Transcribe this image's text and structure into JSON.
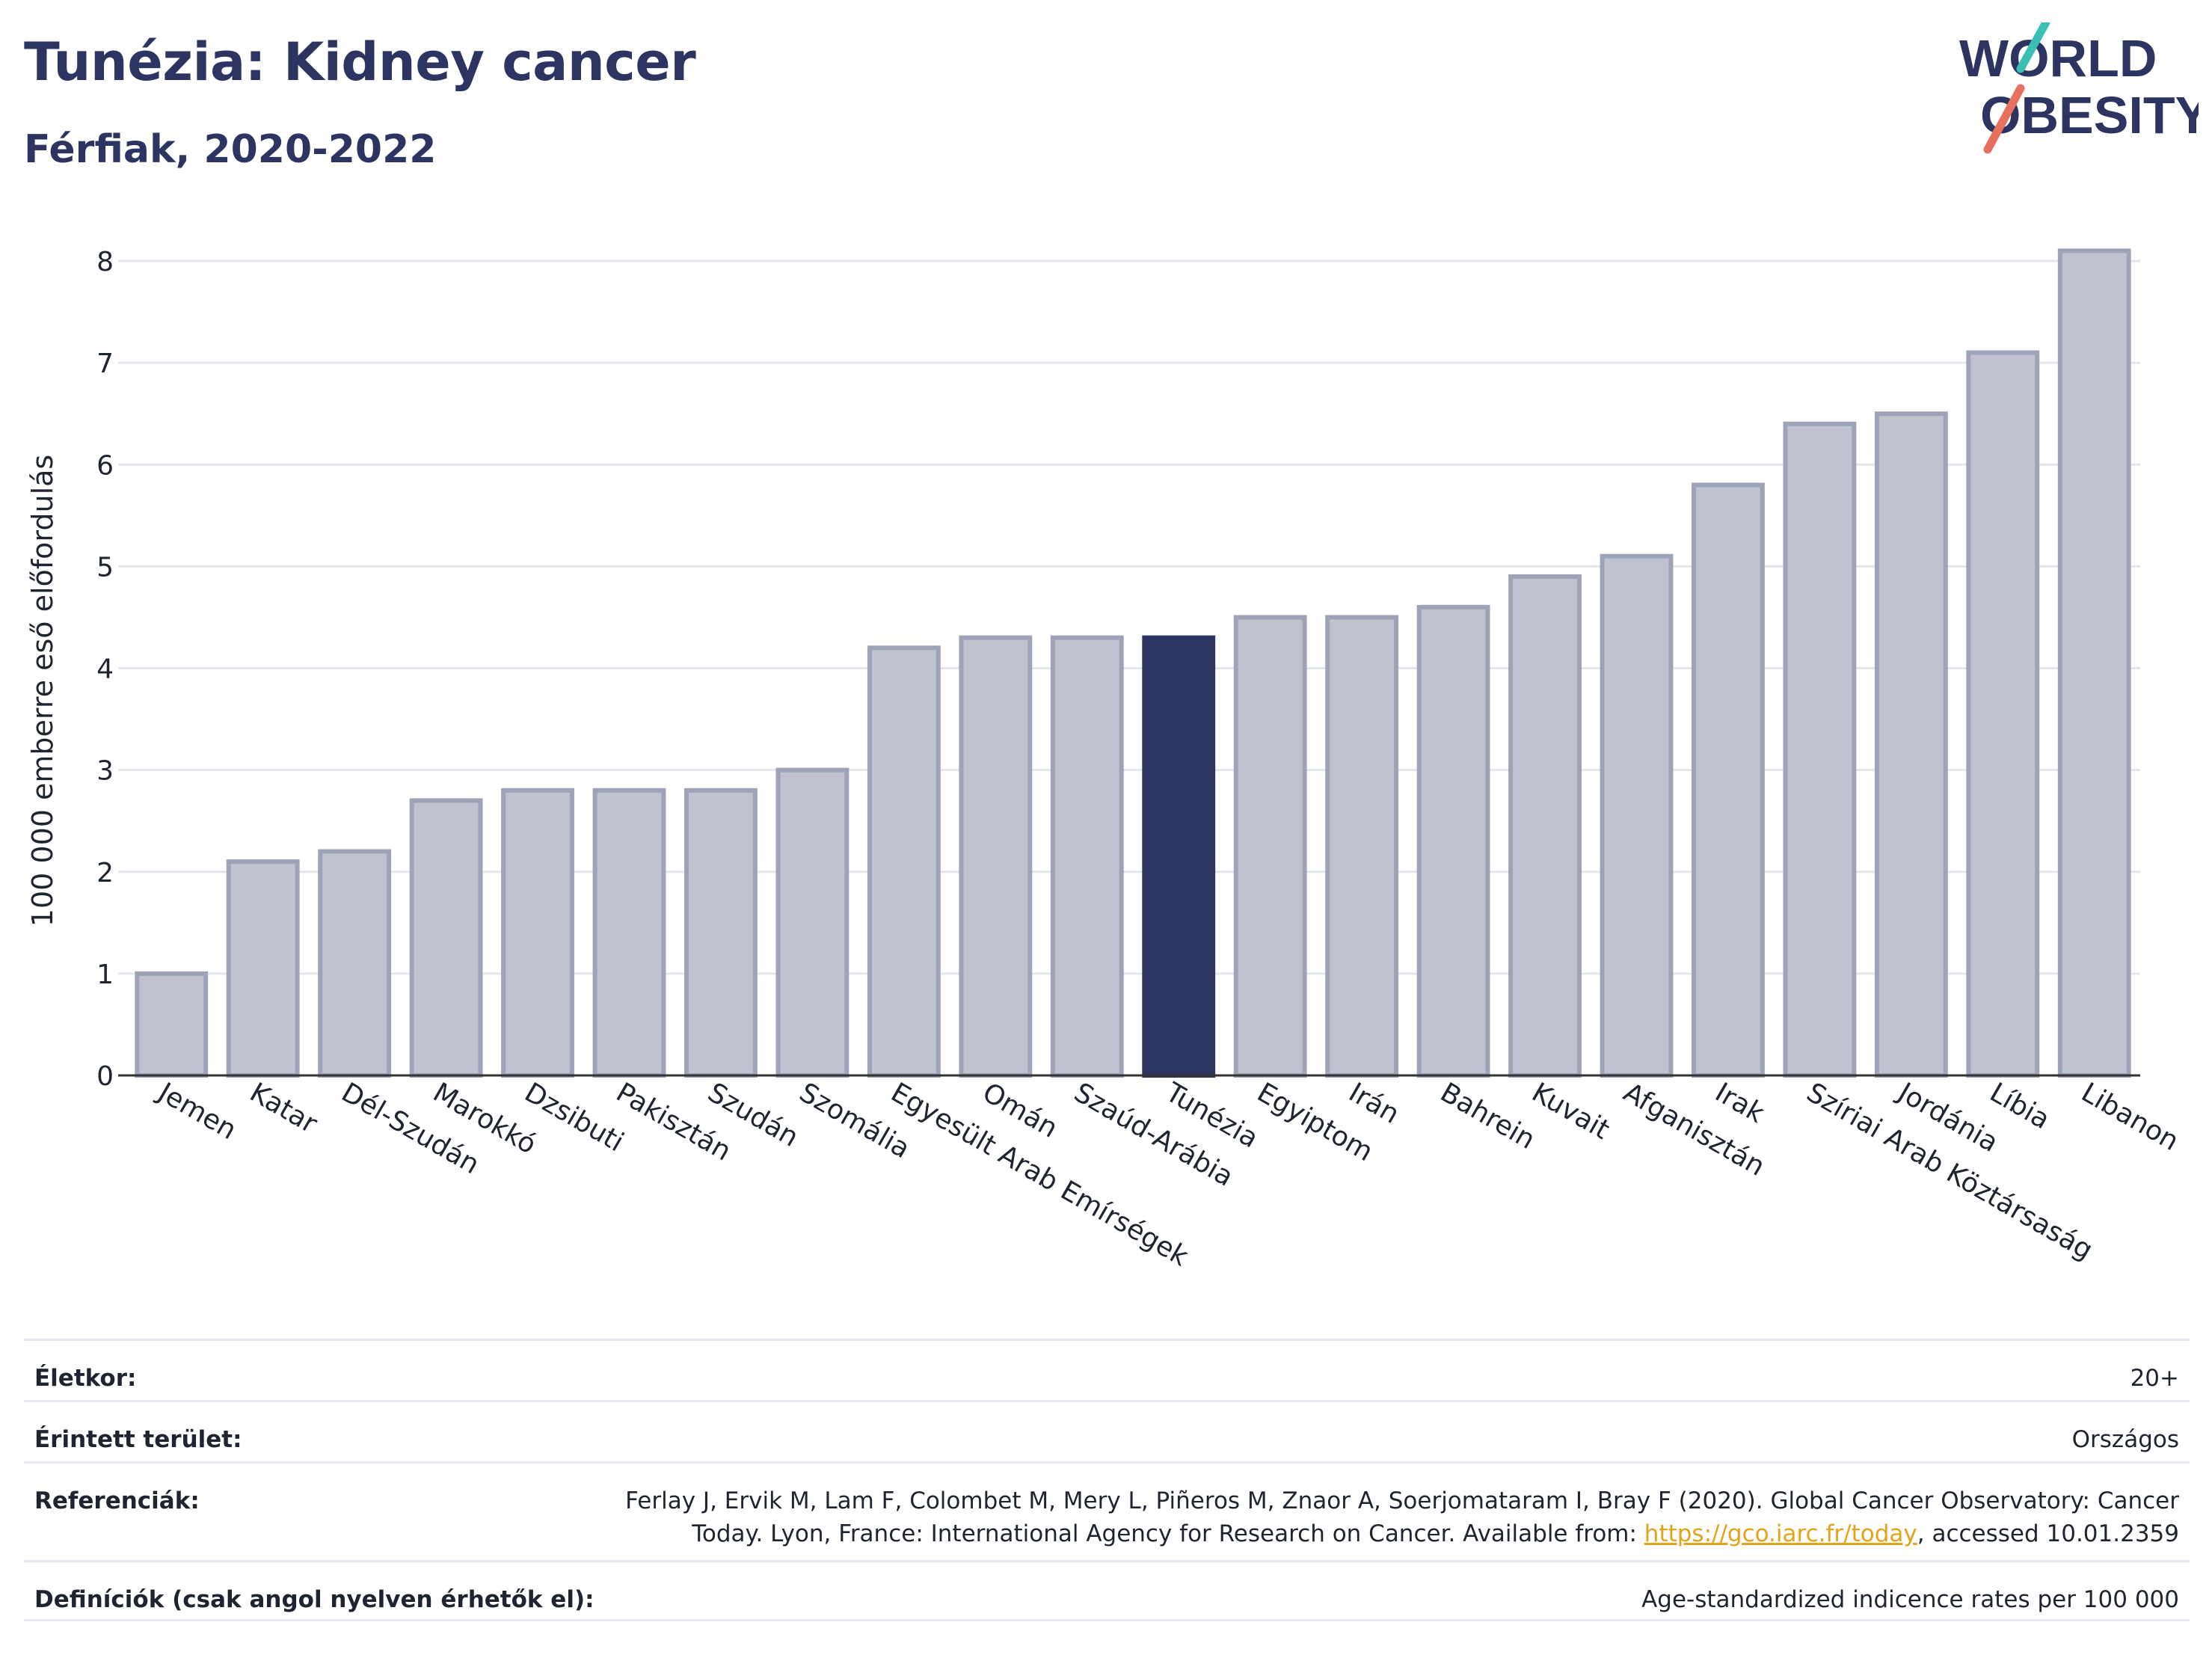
{
  "header": {
    "title": "Tunézia: Kidney cancer",
    "subtitle": "Férfiak, 2020-2022"
  },
  "logo": {
    "line1": "WORLD",
    "line2": "OBESITY"
  },
  "colors": {
    "bar_default_fill": "#bfc2cf",
    "bar_default_stroke": "#9ea3b8",
    "bar_highlight": "#2c3561",
    "title": "#2c3561",
    "logo_teal": "#3bbfb4",
    "logo_coral": "#e8705e",
    "link": "#e3a41c"
  },
  "chart_data": {
    "type": "bar",
    "title": "Tunézia: Kidney cancer",
    "subtitle": "Férfiak, 2020-2022",
    "xlabel": "",
    "ylabel": "100 000 emberre eső előfordulás",
    "ylim": [
      0,
      8.4
    ],
    "yticks": [
      0,
      1,
      2,
      3,
      4,
      5,
      6,
      7,
      8
    ],
    "grid": true,
    "highlight": "Tunézia",
    "categories": [
      "Jemen",
      "Katar",
      "Dél-Szudán",
      "Marokkó",
      "Dzsibuti",
      "Pakisztán",
      "Szudán",
      "Szomália",
      "Egyesült Arab Emírségek",
      "Omán",
      "Szaúd-Arábia",
      "Tunézia",
      "Egyiptom",
      "Irán",
      "Bahrein",
      "Kuvait",
      "Afganisztán",
      "Irak",
      "Szíriai Arab Köztársaság",
      "Jordánia",
      "Líbia",
      "Libanon"
    ],
    "values": [
      1.0,
      2.1,
      2.2,
      2.7,
      2.8,
      2.8,
      2.8,
      3.0,
      4.2,
      4.3,
      4.3,
      4.3,
      4.5,
      4.5,
      4.6,
      4.9,
      5.1,
      5.8,
      6.4,
      6.5,
      7.1,
      8.1
    ]
  },
  "meta": {
    "age_label": "Életkor:",
    "age_value": "20+",
    "area_label": "Érintett terület:",
    "area_value": "Országos",
    "ref_label": "Referenciák:",
    "ref_text_1": "Ferlay J, Ervik M, Lam F, Colombet M, Mery L, Piñeros M, Znaor A, Soerjomataram I, Bray F (2020). Global Cancer Observatory: Cancer",
    "ref_text_2": "Today. Lyon, France: International Agency for Research on Cancer. Available from: ",
    "ref_link": "https://gco.iarc.fr/today",
    "ref_text_3": ", accessed 10.01.2359",
    "def_label": "Definíciók (csak angol nyelven érhetők el):",
    "def_value": "Age-standardized indicence rates per 100 000"
  }
}
